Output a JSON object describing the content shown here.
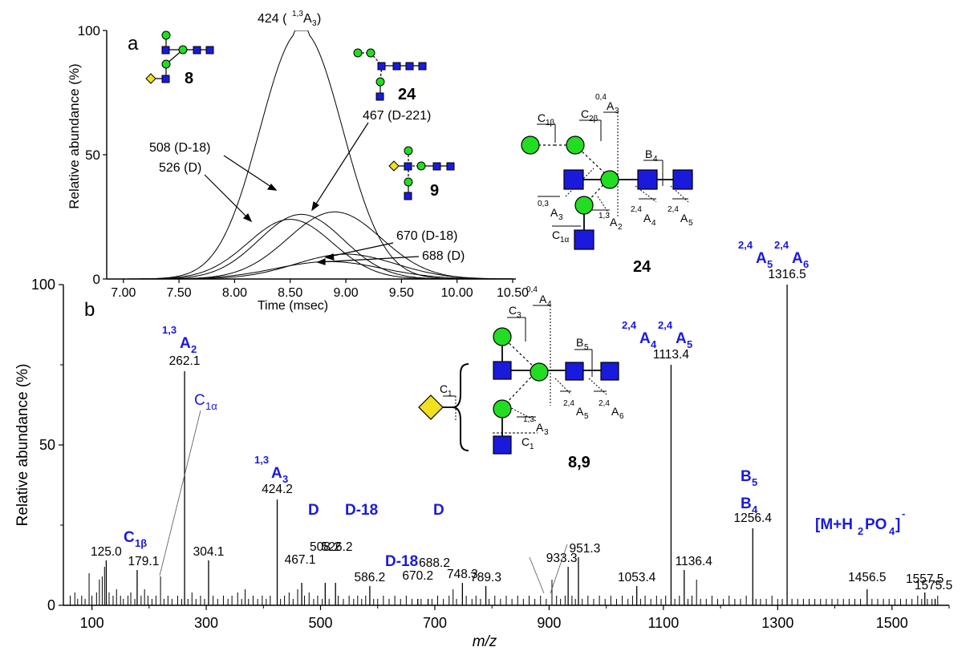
{
  "panel_a_letter": "a",
  "panel_b_letter": "b",
  "colors": {
    "glcnac": "#1a1adc",
    "mannose": "#22dd22",
    "xylose": "#f0e020",
    "label_blue": "#1a1adc",
    "axis": "#000000"
  },
  "chart_data": [
    {
      "type": "line",
      "panel": "a",
      "xlabel": "Time (msec)",
      "ylabel": "Relative abundance (%)",
      "xlim": [
        6.85,
        10.5
      ],
      "ylim": [
        0,
        100
      ],
      "xticks": [
        "7.00",
        "7.50",
        "8.00",
        "8.50",
        "9.00",
        "9.50",
        "10.00",
        "10.50"
      ],
      "yticks": [
        "0",
        "50",
        "100"
      ],
      "series": [
        {
          "name": "424 (1,3A3)",
          "center": 8.6,
          "sigma": 0.37,
          "peak": 100
        },
        {
          "name": "508 (D-18)",
          "center": 8.6,
          "sigma": 0.38,
          "peak": 26
        },
        {
          "name": "526 (D)",
          "center": 8.5,
          "sigma": 0.38,
          "peak": 24
        },
        {
          "name": "467 (D-221)",
          "center": 8.9,
          "sigma": 0.42,
          "peak": 27
        },
        {
          "name": "670 (D-18)",
          "center": 9.0,
          "sigma": 0.45,
          "peak": 10
        },
        {
          "name": "688 (D)",
          "center": 8.85,
          "sigma": 0.48,
          "peak": 7
        }
      ],
      "labels": {
        "l424_main": "424 (",
        "l424_sup": "1,3",
        "l424_A": "A",
        "l424_sub": "3",
        "l424_close": ")",
        "l508": "508 (D-18)",
        "l526": "526 (D)",
        "l467": "467 (D-221)",
        "l670": "670 (D-18)",
        "l688": "688 (D)"
      }
    },
    {
      "type": "bar",
      "panel": "b",
      "xlabel": "m/z",
      "ylabel": "Relative abundance (%)",
      "xlim": [
        50,
        1600
      ],
      "ylim": [
        0,
        100
      ],
      "xticks": [
        100,
        300,
        500,
        700,
        900,
        1100,
        1300,
        1500
      ],
      "yticks": [
        0,
        50,
        100
      ],
      "labeled_peaks": [
        {
          "mz": 125.0,
          "intensity": 14,
          "label": "125.0"
        },
        {
          "mz": 179.1,
          "intensity": 11,
          "label": "179.1"
        },
        {
          "mz": 262.1,
          "intensity": 73,
          "label": "262.1"
        },
        {
          "mz": 304.1,
          "intensity": 14,
          "label": "304.1"
        },
        {
          "mz": 424.2,
          "intensity": 33,
          "label": "424.2"
        },
        {
          "mz": 467.1,
          "intensity": 7,
          "label": "467.1"
        },
        {
          "mz": 508.2,
          "intensity": 7,
          "label": "508.2"
        },
        {
          "mz": 526.2,
          "intensity": 7,
          "label": "526.2"
        },
        {
          "mz": 586.2,
          "intensity": 6,
          "label": "586.2"
        },
        {
          "mz": 670.2,
          "intensity": 2,
          "label": "670.2"
        },
        {
          "mz": 688.2,
          "intensity": 2,
          "label": "688.2"
        },
        {
          "mz": 748.3,
          "intensity": 7,
          "label": "748.3"
        },
        {
          "mz": 789.3,
          "intensity": 6,
          "label": "789.3"
        },
        {
          "mz": 933.3,
          "intensity": 12,
          "label": "933.3"
        },
        {
          "mz": 951.3,
          "intensity": 15,
          "label": "951.3"
        },
        {
          "mz": 1053.4,
          "intensity": 6,
          "label": "1053.4"
        },
        {
          "mz": 1113.4,
          "intensity": 75,
          "label": "1113.4"
        },
        {
          "mz": 1136.4,
          "intensity": 11,
          "label": "1136.4"
        },
        {
          "mz": 1256.4,
          "intensity": 24,
          "label": "1256.4"
        },
        {
          "mz": 1316.5,
          "intensity": 100,
          "label": "1316.5"
        },
        {
          "mz": 1456.5,
          "intensity": 5,
          "label": "1456.5"
        },
        {
          "mz": 1557.5,
          "intensity": 4,
          "label": "1557.5"
        },
        {
          "mz": 1575.5,
          "intensity": 2,
          "label": "1575.5"
        }
      ],
      "minor_peaks": [
        [
          62,
          3
        ],
        [
          70,
          4
        ],
        [
          75,
          2
        ],
        [
          82,
          3
        ],
        [
          88,
          2
        ],
        [
          95,
          10
        ],
        [
          100,
          3
        ],
        [
          108,
          4
        ],
        [
          113,
          8
        ],
        [
          118,
          9
        ],
        [
          122,
          12
        ],
        [
          130,
          4
        ],
        [
          137,
          3
        ],
        [
          143,
          5
        ],
        [
          150,
          3
        ],
        [
          155,
          2
        ],
        [
          163,
          3
        ],
        [
          168,
          4
        ],
        [
          175,
          2
        ],
        [
          186,
          3
        ],
        [
          192,
          5
        ],
        [
          198,
          3
        ],
        [
          205,
          2
        ],
        [
          212,
          3
        ],
        [
          220,
          9
        ],
        [
          226,
          2
        ],
        [
          233,
          3
        ],
        [
          240,
          2
        ],
        [
          250,
          3
        ],
        [
          257,
          2
        ],
        [
          268,
          2
        ],
        [
          275,
          4
        ],
        [
          282,
          2
        ],
        [
          290,
          3
        ],
        [
          297,
          2
        ],
        [
          312,
          3
        ],
        [
          320,
          2
        ],
        [
          330,
          3
        ],
        [
          338,
          2
        ],
        [
          345,
          3
        ],
        [
          355,
          4
        ],
        [
          362,
          2
        ],
        [
          368,
          5
        ],
        [
          374,
          2
        ],
        [
          382,
          3
        ],
        [
          390,
          2
        ],
        [
          398,
          3
        ],
        [
          405,
          2
        ],
        [
          412,
          3
        ],
        [
          430,
          2
        ],
        [
          437,
          3
        ],
        [
          445,
          4
        ],
        [
          452,
          2
        ],
        [
          460,
          5
        ],
        [
          472,
          3
        ],
        [
          480,
          4
        ],
        [
          488,
          2
        ],
        [
          495,
          3
        ],
        [
          503,
          2
        ],
        [
          515,
          2
        ],
        [
          531,
          3
        ],
        [
          540,
          2
        ],
        [
          550,
          3
        ],
        [
          558,
          2
        ],
        [
          565,
          3
        ],
        [
          572,
          2
        ],
        [
          579,
          3
        ],
        [
          593,
          2
        ],
        [
          600,
          2
        ],
        [
          610,
          3
        ],
        [
          620,
          2
        ],
        [
          630,
          3
        ],
        [
          640,
          2
        ],
        [
          650,
          3
        ],
        [
          660,
          2
        ],
        [
          676,
          2
        ],
        [
          695,
          2
        ],
        [
          705,
          3
        ],
        [
          715,
          2
        ],
        [
          725,
          3
        ],
        [
          732,
          5
        ],
        [
          738,
          2
        ],
        [
          755,
          3
        ],
        [
          765,
          2
        ],
        [
          772,
          3
        ],
        [
          780,
          2
        ],
        [
          795,
          2
        ],
        [
          805,
          3
        ],
        [
          815,
          2
        ],
        [
          825,
          3
        ],
        [
          835,
          2
        ],
        [
          845,
          3
        ],
        [
          855,
          2
        ],
        [
          865,
          3
        ],
        [
          875,
          2
        ],
        [
          885,
          3
        ],
        [
          895,
          2
        ],
        [
          905,
          8
        ],
        [
          913,
          3
        ],
        [
          920,
          2
        ],
        [
          928,
          3
        ],
        [
          940,
          3
        ],
        [
          946,
          2
        ],
        [
          958,
          2
        ],
        [
          968,
          3
        ],
        [
          978,
          2
        ],
        [
          988,
          3
        ],
        [
          998,
          2
        ],
        [
          1008,
          3
        ],
        [
          1018,
          2
        ],
        [
          1028,
          3
        ],
        [
          1038,
          2
        ],
        [
          1046,
          3
        ],
        [
          1060,
          2
        ],
        [
          1068,
          3
        ],
        [
          1078,
          2
        ],
        [
          1088,
          3
        ],
        [
          1096,
          2
        ],
        [
          1104,
          3
        ],
        [
          1120,
          2
        ],
        [
          1128,
          3
        ],
        [
          1143,
          2
        ],
        [
          1150,
          3
        ],
        [
          1158,
          8
        ],
        [
          1165,
          2
        ],
        [
          1175,
          2
        ],
        [
          1185,
          3
        ],
        [
          1195,
          2
        ],
        [
          1205,
          2
        ],
        [
          1215,
          3
        ],
        [
          1225,
          2
        ],
        [
          1235,
          2
        ],
        [
          1245,
          3
        ],
        [
          1262,
          2
        ],
        [
          1270,
          2
        ],
        [
          1280,
          2
        ],
        [
          1290,
          3
        ],
        [
          1300,
          2
        ],
        [
          1308,
          2
        ],
        [
          1325,
          2
        ],
        [
          1335,
          2
        ],
        [
          1345,
          2
        ],
        [
          1355,
          2
        ],
        [
          1365,
          2
        ],
        [
          1375,
          2
        ],
        [
          1385,
          2
        ],
        [
          1395,
          2
        ],
        [
          1405,
          2
        ],
        [
          1415,
          2
        ],
        [
          1425,
          2
        ],
        [
          1435,
          2
        ],
        [
          1445,
          2
        ],
        [
          1465,
          2
        ],
        [
          1475,
          2
        ],
        [
          1485,
          2
        ],
        [
          1495,
          2
        ],
        [
          1505,
          2
        ],
        [
          1515,
          2
        ],
        [
          1525,
          2
        ],
        [
          1535,
          2
        ],
        [
          1545,
          3
        ],
        [
          1552,
          2
        ],
        [
          1562,
          2
        ],
        [
          1570,
          2
        ],
        [
          1580,
          3
        ]
      ],
      "fragment_labels": {
        "a2_sup": "1,3",
        "a2_A": "A",
        "a2_sub": "2",
        "a3_sup": "1,3",
        "a3_A": "A",
        "a3_sub": "3",
        "c1b_C": "C",
        "c1b_sub": "1β",
        "c1a_C": "C",
        "c1a_sub": "1α",
        "d1": "D",
        "d18": "D-18",
        "d18b": "D-18",
        "d2": "D",
        "a4a5_sup1": "2,4",
        "a4a5_A1": "A",
        "a4a5_sub1": "4",
        "a4a5_sup2": "2,4",
        "a4a5_A2": "A",
        "a4a5_sub2": "5",
        "a5a6_sup1": "2,4",
        "a5a6_A1": "A",
        "a5a6_sub1": "5",
        "a5a6_sup2": "2,4",
        "a5a6_A2": "A",
        "a5a6_sub2": "6",
        "b5_B": "B",
        "b5_sub": "5",
        "b4_B": "B",
        "b4_sub": "4",
        "mh_main": "[M+H",
        "mh_sub2": "2",
        "mh_po": "PO",
        "mh_sub4": "4",
        "mh_close": "]",
        "mh_minus": "-"
      }
    }
  ],
  "structures": {
    "s8": "8",
    "s24": "24",
    "s9": "9",
    "s24big": "24",
    "s89": "8,9",
    "big24": {
      "c1b_C": "C",
      "c1b_sub": "1β",
      "c2b_C": "C",
      "c2b_sub": "2β",
      "a04_sup": "0,4",
      "a04_A": "A",
      "a04_sub": "3",
      "b4_B": "B",
      "b4_sub": "4",
      "a03_sup": "0,3",
      "a03_A": "A",
      "a03_sub": "3",
      "a13_sup": "1,3",
      "a13_A": "A",
      "a13_sub": "2",
      "a24a_sup": "2,4",
      "a24a_A": "A",
      "a24a_sub": "4",
      "a24b_sup": "2,4",
      "a24b_A": "A",
      "a24b_sub": "5",
      "c1a_C": "C",
      "c1a_sub": "1α"
    },
    "big89": {
      "c3_C": "C",
      "c3_sub": "3",
      "a04_sup": "0,4",
      "a04_A": "A",
      "a04_sub": "4",
      "b5_B": "B",
      "b5_sub": "5",
      "c1_C": "C",
      "c1_sub": "1",
      "a13_sup": "1,3",
      "a13_A": "A",
      "a13_sub": "3",
      "c1b_C": "C",
      "c1b_sub": "1",
      "a24a_sup": "2,4",
      "a24a_A": "A",
      "a24a_sub": "5",
      "a24b_sup": "2,4",
      "a24b_A": "A",
      "a24b_sub": "6"
    }
  }
}
